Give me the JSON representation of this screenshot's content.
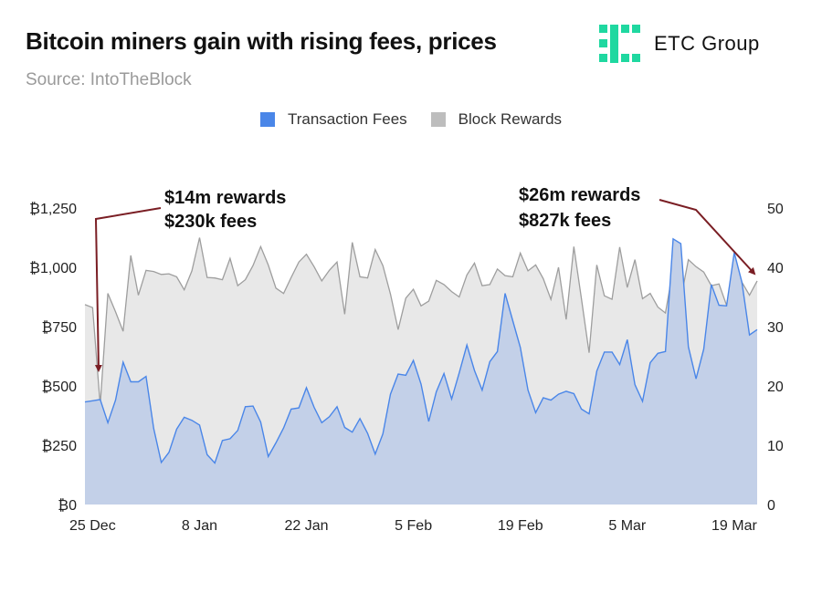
{
  "header": {
    "title": "Bitcoin miners gain with rising fees, prices",
    "subtitle": "Source: IntoTheBlock",
    "logo_text": "ETC Group"
  },
  "colors": {
    "fees_line": "#4a86e8",
    "fees_fill": "#c3d0e8",
    "rewards_line": "#9e9e9e",
    "rewards_fill": "#e8e8e8",
    "brand": "#1fd8a0",
    "arrow": "#7a1e24"
  },
  "legend": [
    {
      "label": "Transaction Fees",
      "color": "#4a86e8"
    },
    {
      "label": "Block Rewards",
      "color": "#bdbdbd"
    }
  ],
  "annotations": [
    {
      "line1": "$14m rewards",
      "line2": "$230k fees"
    },
    {
      "line1": "$26m rewards",
      "line2": "$827k fees"
    }
  ],
  "chart_data": {
    "type": "area",
    "x_tick_labels": [
      "25 Dec",
      "8 Jan",
      "22 Jan",
      "5 Feb",
      "19 Feb",
      "5 Mar",
      "19 Mar"
    ],
    "x_tick_index": [
      1,
      15,
      29,
      43,
      57,
      71,
      85
    ],
    "left_axis": {
      "ticks": [
        "₿0",
        "₿250",
        "₿500",
        "₿750",
        "₿1,000",
        "₿1,250"
      ],
      "ylim": [
        0,
        1250
      ]
    },
    "right_axis": {
      "ticks": [
        "0",
        "10",
        "20",
        "30",
        "40",
        "50"
      ],
      "ylim": [
        0,
        50
      ]
    },
    "grid": false,
    "legend_position": "top-center",
    "series": [
      {
        "name": "Transaction Fees",
        "axis": "right",
        "values": [
          17.3,
          17.5,
          17.7,
          13.8,
          17.6,
          24,
          20.7,
          20.7,
          21.6,
          12.8,
          7.1,
          8.8,
          12.7,
          14.7,
          14.2,
          13.4,
          8.4,
          7,
          10.8,
          11.1,
          12.5,
          16.5,
          16.6,
          13.9,
          8.1,
          10.4,
          12.9,
          16.1,
          16.3,
          19.7,
          16.4,
          13.8,
          14.8,
          16.5,
          13,
          12.2,
          14.5,
          12,
          8.5,
          11.9,
          18.6,
          22,
          21.8,
          24.3,
          20.3,
          14,
          19,
          22.1,
          17.8,
          22.2,
          26.9,
          22.6,
          19.3,
          24.1,
          25.8,
          35.6,
          31,
          26.5,
          19.3,
          15.5,
          18,
          17.6,
          18.6,
          19.1,
          18.7,
          16.1,
          15.3,
          22.5,
          25.7,
          25.7,
          23.6,
          27.8,
          20.2,
          17.4,
          23.9,
          25.5,
          25.8,
          44.8,
          44,
          26.6,
          21.2,
          26.2,
          37.1,
          33.6,
          33.5,
          42.5,
          37.5,
          28.6,
          29.5
        ]
      },
      {
        "name": "Block Rewards",
        "axis": "right",
        "values": [
          33.7,
          33.2,
          16.8,
          35.6,
          32.5,
          29.2,
          42,
          35.3,
          39.5,
          39.3,
          38.8,
          38.9,
          38.4,
          36.2,
          39.4,
          45,
          38.3,
          38.2,
          37.9,
          41.5,
          36.9,
          37.9,
          40.3,
          43.5,
          40.4,
          36.5,
          35.6,
          38.3,
          40.9,
          42.2,
          40.1,
          37.7,
          39.5,
          40.9,
          32.1,
          44.2,
          38.4,
          38.2,
          43,
          40.3,
          35.5,
          29.5,
          34.8,
          36.3,
          33.5,
          34.3,
          37.8,
          37.1,
          35.9,
          35,
          38.7,
          40.7,
          36.9,
          37.1,
          39.7,
          38.6,
          38.4,
          42.4,
          39.4,
          40.4,
          38.1,
          34.6,
          40,
          31.2,
          43.5,
          34.7,
          25.6,
          40.4,
          35.2,
          34.6,
          43.4,
          36.6,
          41.3,
          34.7,
          35.6,
          33.3,
          32.3,
          39.7,
          34.6,
          41.3,
          40.1,
          39.2,
          36.9,
          37.2,
          33.6,
          40.1,
          37.5,
          35.3,
          37.7
        ]
      }
    ]
  }
}
